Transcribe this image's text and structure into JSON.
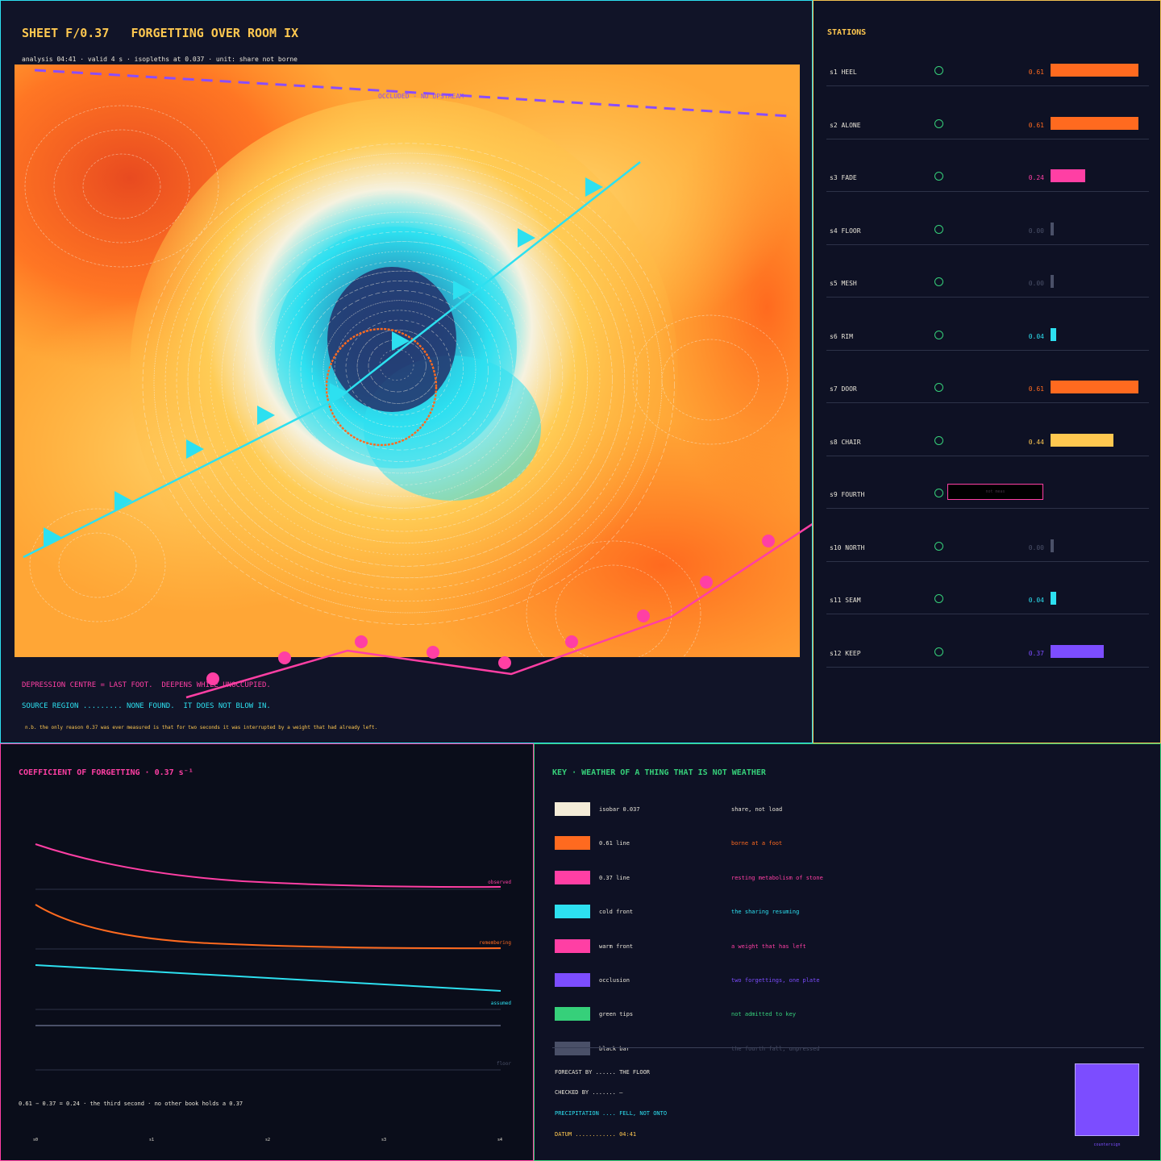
{
  "sheet": {
    "title": "SHEET F/0.37   FORGETTING OVER ROOM IX",
    "subtitle": "analysis 04:41 · valid 4 s · isopleths at 0.037 · unit: share not borne",
    "occluded_label": "OCCLUDED · NO UPSTREAM",
    "note_depression": "DEPRESSION CENTRE = LAST FOOT.  DEEPENS WHILE UNOCCUPIED.",
    "note_source": "SOURCE REGION ......... NONE FOUND.  IT DOES NOT BLOW IN.",
    "note_nb": "n.b. the only reason 0.37 was ever measured is that for two seconds it was interrupted by a weight that had already left."
  },
  "stations": {
    "title": "STATIONS",
    "items": [
      {
        "name": "s1 HEEL",
        "value": "0.61",
        "level": 0.61,
        "color": "#ff6a1f"
      },
      {
        "name": "s2 ALONE",
        "value": "0.61",
        "level": 0.61,
        "color": "#ff6a1f"
      },
      {
        "name": "s3 FADE",
        "value": "0.24",
        "level": 0.24,
        "color": "#ff3fa4"
      },
      {
        "name": "s4 FLOOR",
        "value": "0.00",
        "level": 0.0,
        "color": "#4a5068"
      },
      {
        "name": "s5 MESH",
        "value": "0.00",
        "level": 0.0,
        "color": "#4a5068"
      },
      {
        "name": "s6 RIM",
        "value": "0.04",
        "level": 0.04,
        "color": "#2de0f0"
      },
      {
        "name": "s7 DOOR",
        "value": "0.61",
        "level": 0.61,
        "color": "#ff6a1f"
      },
      {
        "name": "s8 CHAIR",
        "value": "0.44",
        "level": 0.44,
        "color": "#ffc850"
      },
      {
        "name": "s9 FOURTH",
        "value": "",
        "level": null,
        "color": "#ff3fa4",
        "box_text": "not meas"
      },
      {
        "name": "s10 NORTH",
        "value": "0.00",
        "level": 0.0,
        "color": "#4a5068"
      },
      {
        "name": "s11 SEAM",
        "value": "0.04",
        "level": 0.04,
        "color": "#2de0f0"
      },
      {
        "name": "s12 KEEP",
        "value": "0.37",
        "level": 0.37,
        "color": "#7c4dff"
      }
    ]
  },
  "coefficient": {
    "title": "COEFFICIENT OF FORGETTING · 0.37 s⁻¹",
    "note": "0.61 − 0.37 = 0.24 · the third second · no other book holds a 0.37",
    "series": [
      {
        "name": "observed",
        "color": "#ff3fa4"
      },
      {
        "name": "remembering",
        "color": "#ff6a1f"
      },
      {
        "name": "assumed",
        "color": "#2de0f0"
      },
      {
        "name": "floor",
        "color": "#4a5068"
      }
    ],
    "x_ticks": [
      "s0",
      "s1",
      "s2",
      "s3",
      "s4"
    ]
  },
  "key": {
    "title": "KEY · WEATHER OF A THING THAT IS NOT WEATHER",
    "items": [
      {
        "label": "isobar 0.037",
        "meaning": "share, not load",
        "color": "#f4ecd8",
        "text_color": "#e8e4d8"
      },
      {
        "label": "0.61 line",
        "meaning": "borne at a foot",
        "color": "#ff6a1f",
        "text_color": "#ff6a1f"
      },
      {
        "label": "0.37 line",
        "meaning": "resting metabolism of stone",
        "color": "#ff3fa4",
        "text_color": "#ff3fa4"
      },
      {
        "label": "cold front",
        "meaning": "the sharing resuming",
        "color": "#2de0f0",
        "text_color": "#2de0f0"
      },
      {
        "label": "warm front",
        "meaning": "a weight that has left",
        "color": "#ff3fa4",
        "text_color": "#ff3fa4"
      },
      {
        "label": "occlusion",
        "meaning": "two forgettings, one plate",
        "color": "#7c4dff",
        "text_color": "#7c4dff"
      },
      {
        "label": "green tips",
        "meaning": "not admitted to key",
        "color": "#36d07a",
        "text_color": "#36d07a"
      },
      {
        "label": "black bar",
        "meaning": "the fourth fall, unpressed",
        "color": "#4a5068",
        "text_color": "#4a5068"
      }
    ],
    "forecast_by": "FORECAST BY ...... THE FLOOR",
    "checked_by": "CHECKED BY ....... —",
    "precipitation": "PRECIPITATION .... FELL, NOT ONTO",
    "datum": "DATUM ............ 04:41",
    "stamp_caption": "countersign"
  }
}
